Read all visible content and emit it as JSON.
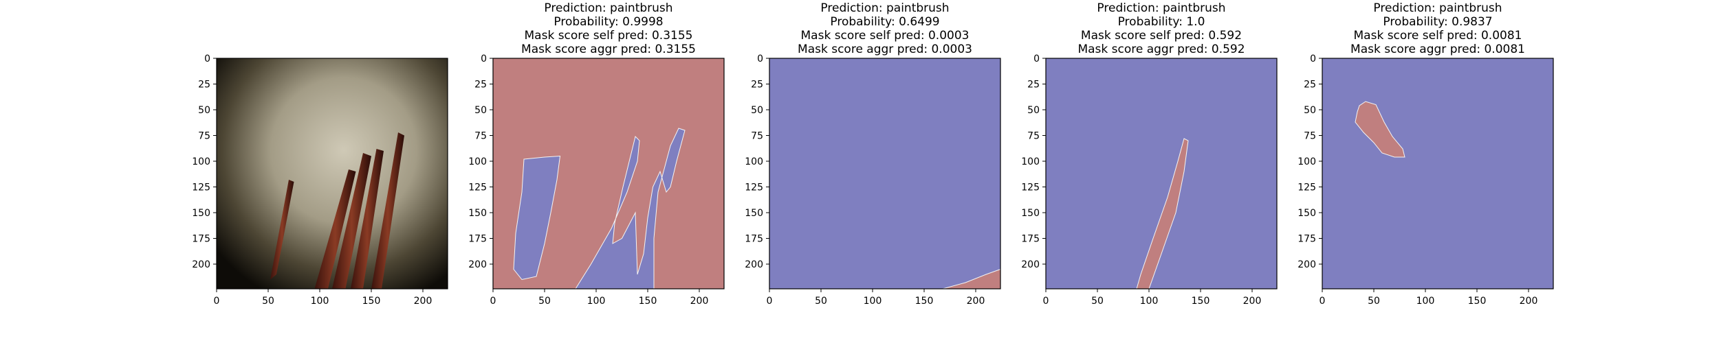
{
  "chart_data": [
    {
      "type": "image",
      "title_lines": [],
      "xlim": [
        0,
        224
      ],
      "ylim": [
        224,
        0
      ],
      "xticks": [
        0,
        50,
        100,
        150,
        200
      ],
      "yticks": [
        0,
        25,
        50,
        75,
        100,
        125,
        150,
        175,
        200
      ]
    },
    {
      "type": "heatmap",
      "title_lines": [
        "Prediction: paintbrush",
        "Probability: 0.9998",
        "Mask score self pred: 0.3155",
        "Mask score aggr pred: 0.3155"
      ],
      "prediction": "paintbrush",
      "probability": 0.9998,
      "mask_score_self_pred": 0.3155,
      "mask_score_aggr_pred": 0.3155,
      "background_color": "#c07f7f",
      "mask_color": "#7f7fc0",
      "mask_regions": [
        [
          [
            50,
            96
          ],
          [
            30,
            98
          ],
          [
            28,
            130
          ],
          [
            22,
            170
          ],
          [
            20,
            205
          ],
          [
            28,
            215
          ],
          [
            42,
            212
          ],
          [
            50,
            180
          ],
          [
            56,
            150
          ],
          [
            62,
            118
          ],
          [
            65,
            95
          ]
        ],
        [
          [
            80,
            224
          ],
          [
            95,
            200
          ],
          [
            115,
            165
          ],
          [
            130,
            130
          ],
          [
            140,
            100
          ],
          [
            142,
            80
          ],
          [
            138,
            76
          ],
          [
            126,
            125
          ],
          [
            118,
            160
          ],
          [
            116,
            180
          ],
          [
            125,
            175
          ],
          [
            138,
            150
          ],
          [
            140,
            210
          ],
          [
            146,
            190
          ],
          [
            150,
            155
          ],
          [
            155,
            125
          ],
          [
            162,
            110
          ],
          [
            168,
            130
          ],
          [
            172,
            125
          ],
          [
            178,
            100
          ],
          [
            186,
            70
          ],
          [
            180,
            68
          ],
          [
            172,
            85
          ],
          [
            160,
            130
          ],
          [
            156,
            175
          ],
          [
            156,
            224
          ]
        ]
      ],
      "xlim": [
        0,
        224
      ],
      "ylim": [
        224,
        0
      ],
      "xticks": [
        0,
        50,
        100,
        150,
        200
      ],
      "yticks": [
        0,
        25,
        50,
        75,
        100,
        125,
        150,
        175,
        200
      ]
    },
    {
      "type": "heatmap",
      "title_lines": [
        "Prediction: paintbrush",
        "Probability: 0.6499",
        "Mask score self pred: 0.0003",
        "Mask score aggr pred: 0.0003"
      ],
      "prediction": "paintbrush",
      "probability": 0.6499,
      "mask_score_self_pred": 0.0003,
      "mask_score_aggr_pred": 0.0003,
      "background_color": "#7f7fc0",
      "mask_color": "#c07f7f",
      "mask_regions": [
        [
          [
            168,
            224
          ],
          [
            224,
            224
          ],
          [
            224,
            205
          ],
          [
            210,
            210
          ],
          [
            190,
            218
          ]
        ]
      ],
      "xlim": [
        0,
        224
      ],
      "ylim": [
        224,
        0
      ],
      "xticks": [
        0,
        50,
        100,
        150,
        200
      ],
      "yticks": [
        0,
        25,
        50,
        75,
        100,
        125,
        150,
        175,
        200
      ]
    },
    {
      "type": "heatmap",
      "title_lines": [
        "Prediction: paintbrush",
        "Probability: 1.0",
        "Mask score self pred: 0.592",
        "Mask score aggr pred: 0.592"
      ],
      "prediction": "paintbrush",
      "probability": 1.0,
      "mask_score_self_pred": 0.592,
      "mask_score_aggr_pred": 0.592,
      "background_color": "#7f7fc0",
      "mask_color": "#c07f7f",
      "mask_regions": [
        [
          [
            88,
            224
          ],
          [
            100,
            224
          ],
          [
            112,
            190
          ],
          [
            126,
            150
          ],
          [
            134,
            110
          ],
          [
            138,
            80
          ],
          [
            134,
            78
          ],
          [
            128,
            100
          ],
          [
            118,
            135
          ],
          [
            104,
            175
          ],
          [
            92,
            210
          ]
        ]
      ],
      "xlim": [
        0,
        224
      ],
      "ylim": [
        224,
        0
      ],
      "xticks": [
        0,
        50,
        100,
        150,
        200
      ],
      "yticks": [
        0,
        25,
        50,
        75,
        100,
        125,
        150,
        175,
        200
      ]
    },
    {
      "type": "heatmap",
      "title_lines": [
        "Prediction: paintbrush",
        "Probability: 0.9837",
        "Mask score self pred: 0.0081",
        "Mask score aggr pred: 0.0081"
      ],
      "prediction": "paintbrush",
      "probability": 0.9837,
      "mask_score_self_pred": 0.0081,
      "mask_score_aggr_pred": 0.0081,
      "background_color": "#7f7fc0",
      "mask_color": "#c07f7f",
      "mask_regions": [
        [
          [
            34,
            52
          ],
          [
            32,
            62
          ],
          [
            40,
            72
          ],
          [
            50,
            82
          ],
          [
            58,
            92
          ],
          [
            70,
            96
          ],
          [
            80,
            96
          ],
          [
            78,
            88
          ],
          [
            68,
            76
          ],
          [
            60,
            62
          ],
          [
            52,
            45
          ],
          [
            42,
            42
          ],
          [
            36,
            46
          ]
        ]
      ],
      "xlim": [
        0,
        224
      ],
      "ylim": [
        224,
        0
      ],
      "xticks": [
        0,
        50,
        100,
        150,
        200
      ],
      "yticks": [
        0,
        25,
        50,
        75,
        100,
        125,
        150,
        175,
        200
      ]
    }
  ]
}
